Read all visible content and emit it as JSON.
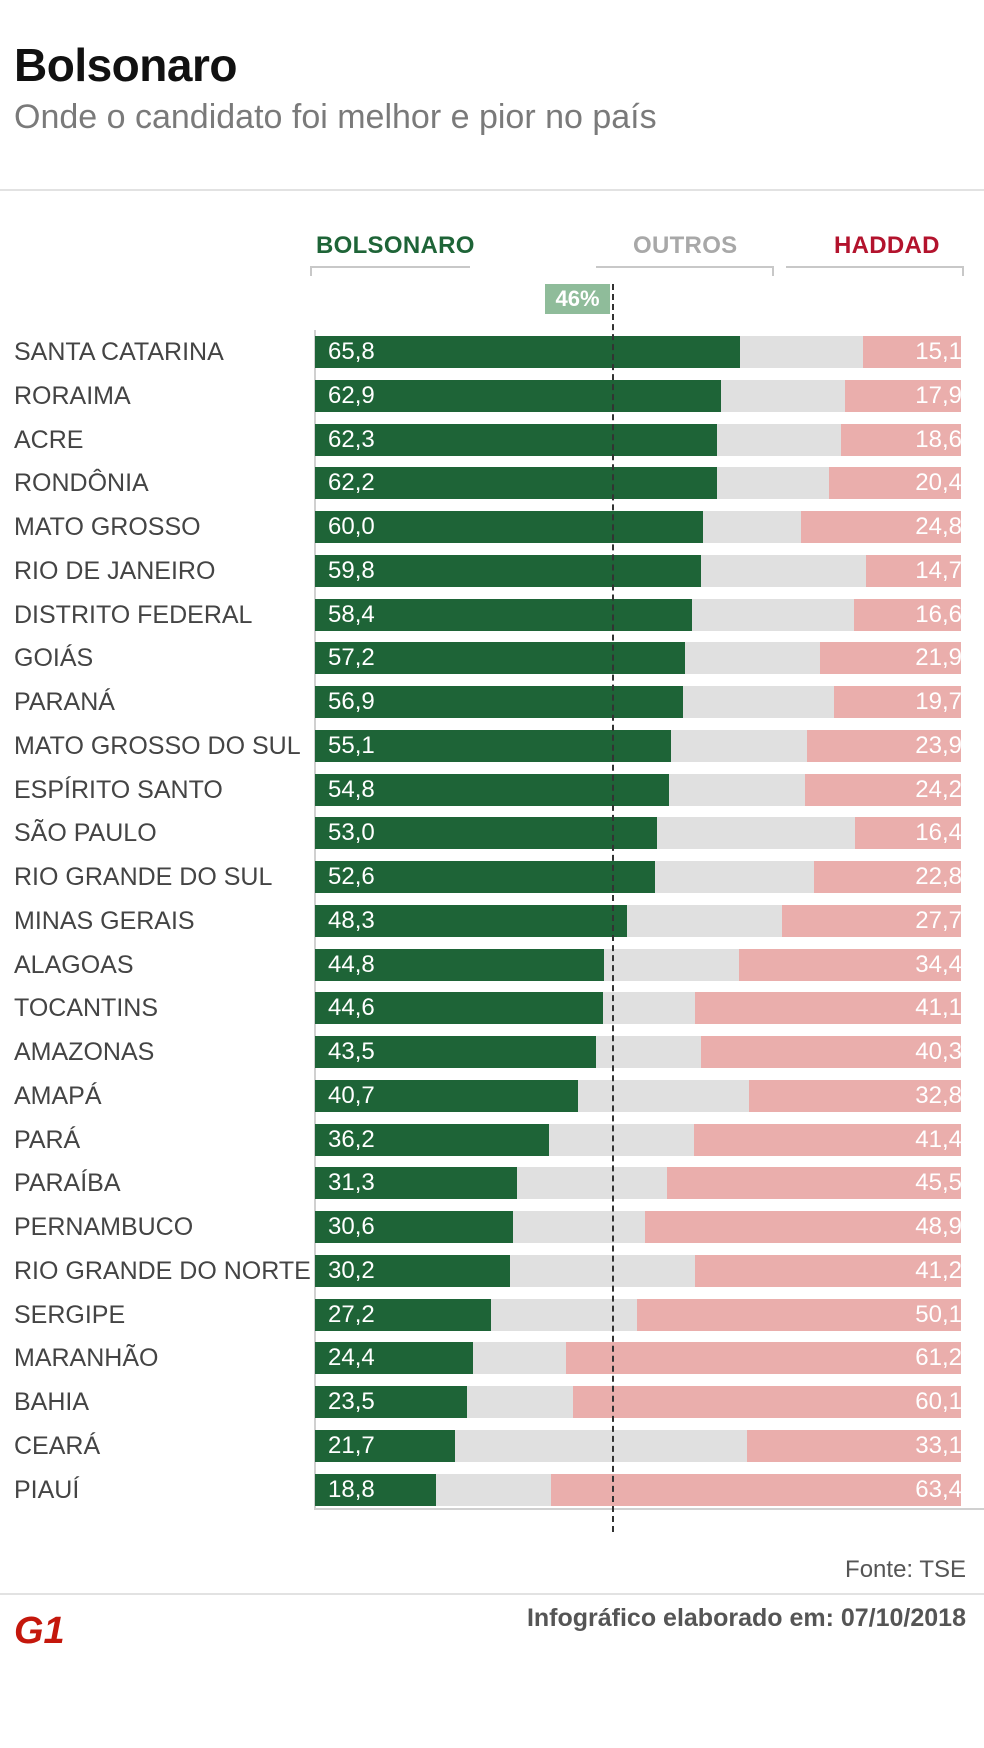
{
  "header": {
    "title": "Bolsonaro",
    "subtitle": "Onde o candidato foi melhor e pior no país"
  },
  "legend": {
    "bolsonaro": "BOLSONARO",
    "outros": "OUTROS",
    "haddad": "HADDAD"
  },
  "average_label": "46%",
  "footer": {
    "source": "Fonte: TSE",
    "date": "Infográfico elaborado em: 07/10/2018",
    "logo_text": "G1"
  },
  "colors": {
    "bolsonaro": "#1e6437",
    "outros": "#e0e0e0",
    "haddad": "#eaaeac",
    "average_marker": "#8fbc9a",
    "legend_bolsonaro": "#1e6437",
    "legend_outros": "#a8a8a8",
    "legend_haddad": "#b3132d",
    "logo": "#c4170c"
  },
  "chart_data": {
    "type": "bar",
    "stacked": true,
    "orientation": "horizontal",
    "average_marker": 46,
    "xlim": [
      0,
      100
    ],
    "categories": [
      "SANTA CATARINA",
      "RORAIMA",
      "ACRE",
      "RONDÔNIA",
      "MATO GROSSO",
      "RIO DE JANEIRO",
      "DISTRITO FEDERAL",
      "GOIÁS",
      "PARANÁ",
      "MATO GROSSO DO SUL",
      "ESPÍRITO SANTO",
      "SÃO PAULO",
      "RIO GRANDE DO SUL",
      "MINAS GERAIS",
      "ALAGOAS",
      "TOCANTINS",
      "AMAZONAS",
      "AMAPÁ",
      "PARÁ",
      "PARAÍBA",
      "PERNAMBUCO",
      "RIO GRANDE DO NORTE",
      "SERGIPE",
      "MARANHÃO",
      "BAHIA",
      "CEARÁ",
      "PIAUÍ"
    ],
    "series": [
      {
        "name": "BOLSONARO",
        "values": [
          "65,8",
          "62,9",
          "62,3",
          "62,2",
          "60,0",
          "59,8",
          "58,4",
          "57,2",
          "56,9",
          "55,1",
          "54,8",
          "53,0",
          "52,6",
          "48,3",
          "44,8",
          "44,6",
          "43,5",
          "40,7",
          "36,2",
          "31,3",
          "30,6",
          "30,2",
          "27,2",
          "24,4",
          "23,5",
          "21,7",
          "18,8"
        ]
      },
      {
        "name": "HADDAD",
        "values": [
          "15,1",
          "17,9",
          "18,6",
          "20,4",
          "24,8",
          "14,7",
          "16,6",
          "21,9",
          "19,7",
          "23,9",
          "24,2",
          "16,4",
          "22,8",
          "27,7",
          "34,4",
          "41,1",
          "40,3",
          "32,8",
          "41,4",
          "45,5",
          "48,9",
          "41,2",
          "50,1",
          "61,2",
          "60,1",
          "33,1",
          "63,4"
        ]
      }
    ]
  }
}
